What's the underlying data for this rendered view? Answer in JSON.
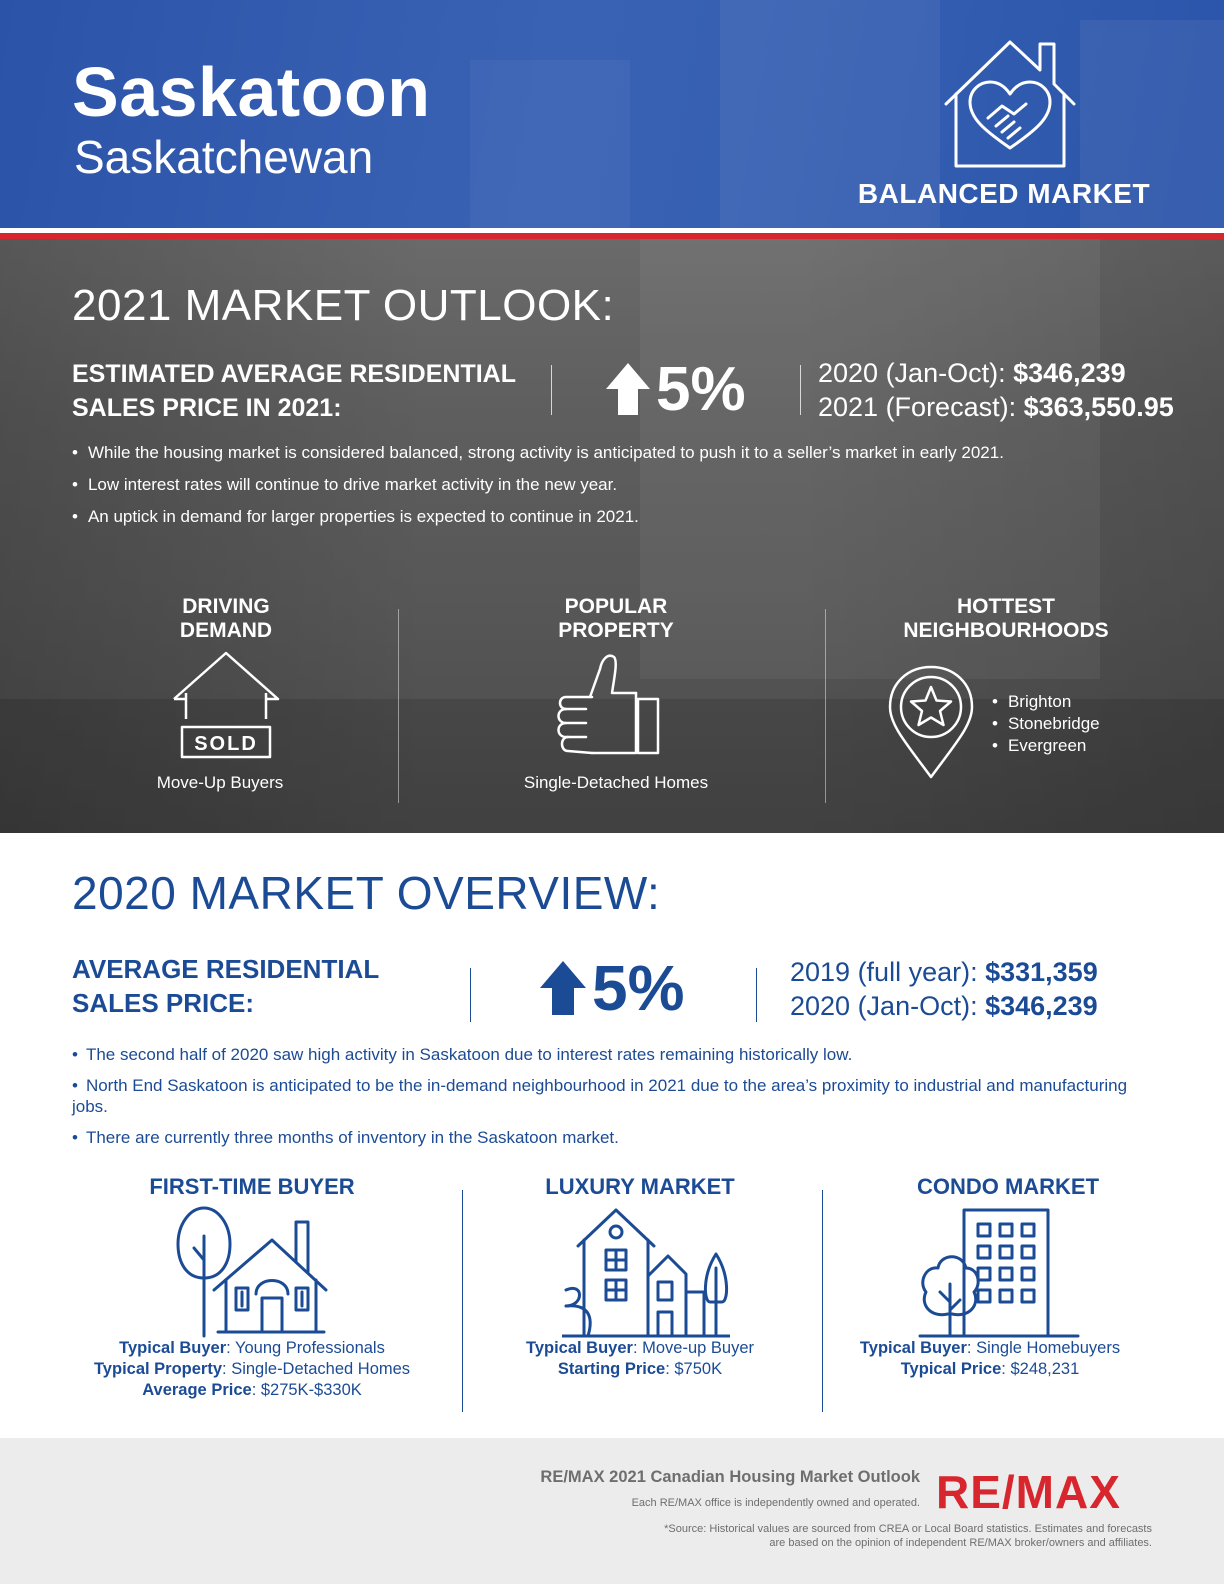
{
  "header": {
    "city": "Saskatoon",
    "province": "Saskatchewan",
    "market_type": "BALANCED MARKET"
  },
  "outlook": {
    "title": "2021 MARKET OUTLOOK:",
    "estimate_label": "ESTIMATED AVERAGE RESIDENTIAL SALES PRICE IN 2021:",
    "change_percent": "5%",
    "price_lines": [
      {
        "label": "2020 (Jan-Oct): ",
        "value": "$346,239"
      },
      {
        "label": "2021 (Forecast): ",
        "value": "$363,550.95"
      }
    ],
    "bullets": [
      "While the housing market is considered balanced, strong activity is anticipated to push it to a seller’s market in early 2021.",
      "Low interest rates will continue to drive market activity in the new year.",
      "An uptick in demand for larger properties is expected to continue in 2021."
    ],
    "driving_demand": {
      "title_line1": "DRIVING",
      "title_line2": "DEMAND",
      "sign": "SOLD",
      "caption": "Move-Up Buyers"
    },
    "popular_property": {
      "title_line1": "POPULAR",
      "title_line2": "PROPERTY",
      "caption": "Single-Detached Homes"
    },
    "hottest_neighbourhoods": {
      "title_line1": "HOTTEST",
      "title_line2": "NEIGHBOURHOODS",
      "items": [
        "Brighton",
        "Stonebridge",
        "Evergreen"
      ]
    }
  },
  "overview": {
    "title": "2020 MARKET OVERVIEW:",
    "avg_label": "AVERAGE RESIDENTIAL SALES PRICE:",
    "change_percent": "5%",
    "price_lines": [
      {
        "label": "2019 (full year): ",
        "value": "$331,359"
      },
      {
        "label": "2020 (Jan-Oct): ",
        "value": "$346,239"
      }
    ],
    "bullets": [
      "The second half of 2020 saw high activity in Saskatoon due to interest rates remaining historically low.",
      "North End Saskatoon is anticipated to be the in-demand neighbourhood in 2021 due to the area’s proximity to industrial and manufacturing jobs.",
      "There are currently three months of inventory in the Saskatoon market."
    ],
    "segments": [
      {
        "title": "FIRST-TIME BUYER",
        "lines": [
          {
            "label": "Typical Buyer",
            "value": ": Young Professionals"
          },
          {
            "label": "Typical Property",
            "value": ": Single-Detached Homes"
          },
          {
            "label": "Average Price",
            "value": ": $275K-$330K"
          }
        ]
      },
      {
        "title": "LUXURY MARKET",
        "lines": [
          {
            "label": "Typical Buyer",
            "value": ": Move-up Buyer"
          },
          {
            "label": "Starting Price",
            "value": ": $750K"
          }
        ]
      },
      {
        "title": "CONDO MARKET",
        "lines": [
          {
            "label": "Typical Buyer",
            "value": ": Single Homebuyers"
          },
          {
            "label": "Typical Price",
            "value": ": $248,231"
          }
        ]
      }
    ]
  },
  "footer": {
    "title": "RE/MAX 2021 Canadian Housing Market Outlook",
    "subtitle": "Each RE/MAX office is independently owned and operated.",
    "source_line1": "*Source: Historical values are sourced from CREA or Local Board statistics. Estimates and forecasts",
    "source_line2": "are based on the opinion of independent RE/MAX broker/owners and affiliates.",
    "logo_text": "RE/MAX"
  },
  "colors": {
    "brand_blue": "#1c4b95",
    "header_blue": "#3660b2",
    "brand_red": "#d8262e"
  }
}
